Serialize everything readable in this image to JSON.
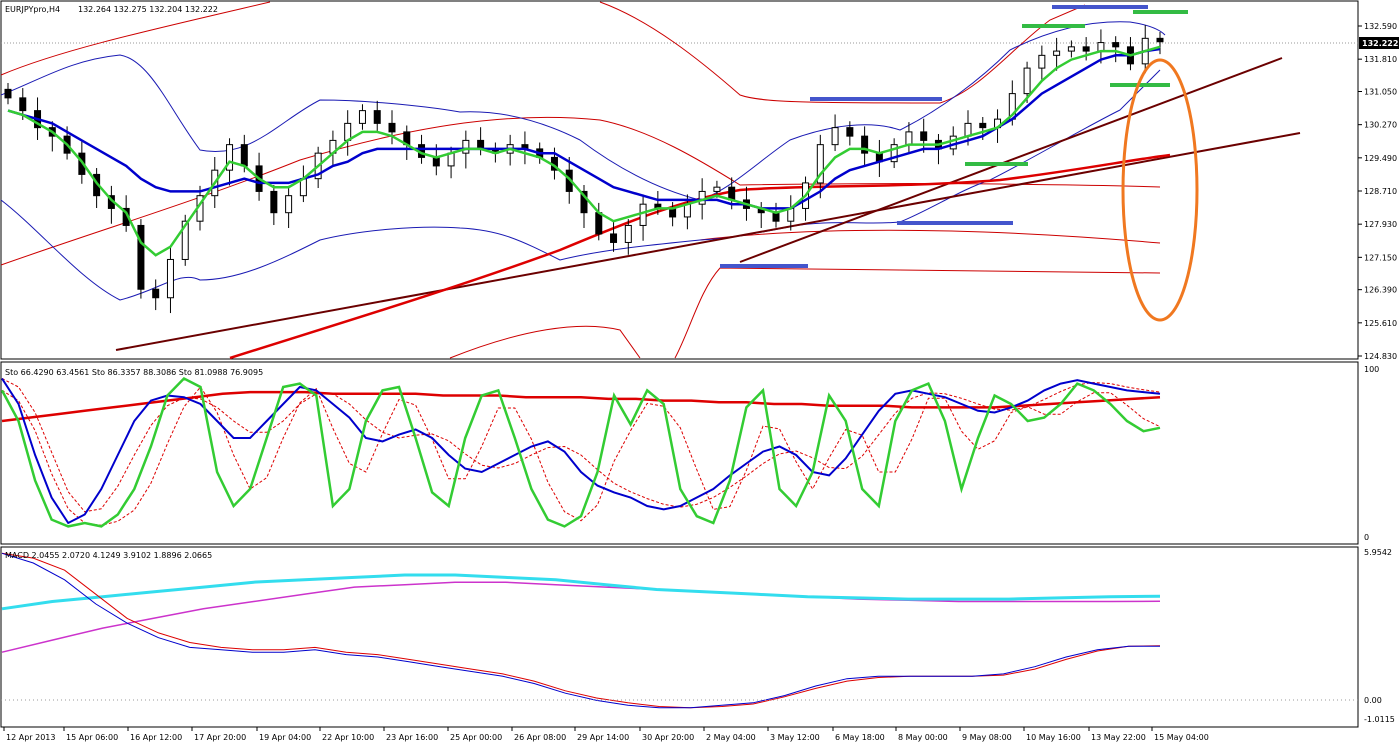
{
  "header": {
    "symbol": "EURJPYpro,H4",
    "quote": "132.264 132.275 132.204 132.222"
  },
  "colors": {
    "background": "#ffffff",
    "grid": "#c8c8c8",
    "bull_candle": "#ffffff",
    "bear_candle": "#000000",
    "ema_fast": "#33cc33",
    "ema_slow": "#0000cc",
    "bollinger_blue": "#1a1ab3",
    "bollinger_red": "#cc0000",
    "trendline_dark": "#6b0000",
    "trendline_red": "#dd0000",
    "support_green": "#33bb44",
    "resistance_blue": "#4455cc",
    "ellipse": "#f07820",
    "stoch_green": "#33cc33",
    "stoch_blue": "#0000cc",
    "stoch_red": "#dd0000",
    "macd_blue": "#0000cc",
    "macd_red": "#dd0000",
    "macd_cyan": "#33ddee",
    "macd_magenta": "#cc33cc"
  },
  "price_axis": {
    "labels": [
      "132.590",
      "131.810",
      "131.050",
      "130.270",
      "129.490",
      "128.710",
      "127.930",
      "127.150",
      "126.390",
      "125.610",
      "124.830"
    ],
    "current": "132.222"
  },
  "stoch_panel": {
    "label": "Sto 66.4290 63.4561  Sto 86.3357 88.3086  Sto 81.0988 76.9095",
    "axis_labels": [
      "100",
      "0"
    ]
  },
  "macd_panel": {
    "label": "MACD 2.0455 2.0720 4.1249 3.9102 1.8896 2.0665",
    "axis_labels": [
      "5.9542",
      "0.00",
      "-1.0115"
    ]
  },
  "time_axis": {
    "labels": [
      "12 Apr 2013",
      "15 Apr 06:00",
      "16 Apr 12:00",
      "17 Apr 20:00",
      "19 Apr 04:00",
      "22 Apr 10:00",
      "23 Apr 16:00",
      "25 Apr 00:00",
      "26 Apr 08:00",
      "29 Apr 14:00",
      "30 Apr 20:00",
      "2 May 04:00",
      "3 May 12:00",
      "6 May 18:00",
      "8 May 00:00",
      "9 May 08:00",
      "10 May 16:00",
      "13 May 22:00",
      "15 May 04:00"
    ]
  },
  "chart_data": {
    "type": "candlestick",
    "symbol": "EURJPYpro",
    "timeframe": "H4",
    "ylim": [
      124.83,
      132.95
    ],
    "closes": [
      130.9,
      130.6,
      130.2,
      130.0,
      129.6,
      129.1,
      128.6,
      128.3,
      127.9,
      126.4,
      126.2,
      127.1,
      128.0,
      128.6,
      129.2,
      129.8,
      129.3,
      128.7,
      128.2,
      128.6,
      129.0,
      129.6,
      129.9,
      130.3,
      130.6,
      130.3,
      130.1,
      129.8,
      129.5,
      129.3,
      129.6,
      129.9,
      129.7,
      129.6,
      129.8,
      129.7,
      129.5,
      129.2,
      128.7,
      128.2,
      127.7,
      127.5,
      127.9,
      128.4,
      128.3,
      128.1,
      128.4,
      128.7,
      128.8,
      128.5,
      128.3,
      128.2,
      128.0,
      128.3,
      128.9,
      129.8,
      130.2,
      130.0,
      129.6,
      129.4,
      129.8,
      130.1,
      129.9,
      129.7,
      130.0,
      130.3,
      130.2,
      130.4,
      131.0,
      131.6,
      131.9,
      132.0,
      132.1,
      132.0,
      132.2,
      132.1,
      131.7,
      132.3,
      132.22
    ],
    "ema_fast": [
      130.6,
      130.5,
      130.3,
      130.1,
      129.8,
      129.4,
      128.9,
      128.5,
      128.2,
      127.5,
      127.2,
      127.4,
      127.9,
      128.4,
      128.9,
      129.4,
      129.3,
      129.0,
      128.8,
      128.8,
      129.0,
      129.3,
      129.6,
      129.9,
      130.1,
      130.1,
      130.0,
      129.8,
      129.6,
      129.5,
      129.6,
      129.7,
      129.7,
      129.6,
      129.7,
      129.6,
      129.5,
      129.3,
      129.0,
      128.6,
      128.2,
      128.0,
      128.1,
      128.2,
      128.3,
      128.3,
      128.4,
      128.5,
      128.6,
      128.5,
      128.4,
      128.3,
      128.2,
      128.3,
      128.6,
      129.1,
      129.5,
      129.7,
      129.7,
      129.6,
      129.7,
      129.8,
      129.8,
      129.8,
      129.9,
      130.0,
      130.1,
      130.2,
      130.5,
      130.9,
      131.3,
      131.6,
      131.8,
      131.9,
      132.0,
      132.0,
      131.9,
      132.0,
      132.1
    ],
    "ema_slow": [
      130.6,
      130.5,
      130.4,
      130.3,
      130.1,
      129.9,
      129.7,
      129.5,
      129.3,
      129.0,
      128.8,
      128.7,
      128.7,
      128.7,
      128.8,
      128.9,
      129.0,
      128.9,
      128.9,
      128.9,
      129.0,
      129.1,
      129.3,
      129.4,
      129.6,
      129.7,
      129.7,
      129.7,
      129.7,
      129.7,
      129.7,
      129.7,
      129.7,
      129.7,
      129.7,
      129.7,
      129.6,
      129.6,
      129.4,
      129.2,
      129.0,
      128.8,
      128.7,
      128.6,
      128.5,
      128.5,
      128.5,
      128.5,
      128.5,
      128.4,
      128.4,
      128.3,
      128.3,
      128.3,
      128.5,
      128.7,
      129.0,
      129.2,
      129.3,
      129.4,
      129.5,
      129.6,
      129.7,
      129.7,
      129.8,
      129.9,
      130.0,
      130.2,
      130.4,
      130.7,
      131.0,
      131.2,
      131.4,
      131.6,
      131.8,
      131.9,
      131.9,
      132.0,
      132.05
    ],
    "stoch_green": [
      88,
      70,
      35,
      12,
      8,
      10,
      8,
      15,
      30,
      55,
      85,
      95,
      90,
      40,
      20,
      30,
      60,
      90,
      92,
      85,
      20,
      30,
      70,
      88,
      90,
      60,
      28,
      20,
      60,
      85,
      88,
      60,
      30,
      12,
      8,
      14,
      40,
      85,
      68,
      88,
      80,
      30,
      14,
      10,
      35,
      78,
      88,
      30,
      20,
      40,
      85,
      70,
      30,
      20,
      70,
      88,
      92,
      70,
      30,
      60,
      85,
      80,
      70,
      72,
      80,
      92,
      88,
      80,
      70,
      64,
      66
    ],
    "stoch_blue": [
      95,
      80,
      50,
      25,
      10,
      15,
      30,
      50,
      70,
      82,
      85,
      84,
      80,
      70,
      60,
      60,
      70,
      80,
      90,
      88,
      80,
      72,
      60,
      58,
      62,
      65,
      60,
      50,
      42,
      40,
      45,
      50,
      55,
      58,
      52,
      40,
      32,
      28,
      25,
      20,
      18,
      20,
      25,
      30,
      38,
      45,
      52,
      55,
      50,
      40,
      38,
      48,
      62,
      76,
      86,
      88,
      86,
      84,
      80,
      76,
      75,
      78,
      82,
      88,
      92,
      94,
      92,
      90,
      88,
      87,
      86
    ],
    "stoch_red_solid": [
      70,
      72,
      74,
      76,
      78,
      80,
      82,
      84,
      86,
      87,
      87,
      87,
      86,
      86,
      86,
      86,
      85,
      85,
      85,
      84,
      84,
      84,
      83,
      83,
      82,
      82,
      81,
      81,
      80,
      80,
      79,
      79,
      79,
      78,
      78,
      78,
      78,
      79,
      80,
      81,
      82,
      83,
      84
    ],
    "macd_blue": [
      5.9,
      5.5,
      4.8,
      3.8,
      3.0,
      2.4,
      2.0,
      1.9,
      1.8,
      1.8,
      1.9,
      1.7,
      1.6,
      1.4,
      1.2,
      1.0,
      0.8,
      0.5,
      0.1,
      -0.2,
      -0.4,
      -0.5,
      -0.5,
      -0.4,
      -0.3,
      0.0,
      0.4,
      0.7,
      0.8,
      0.8,
      0.8,
      0.8,
      0.9,
      1.2,
      1.6,
      1.9,
      2.05,
      2.05
    ],
    "macd_red": [
      5.9,
      5.7,
      5.2,
      4.2,
      3.2,
      2.6,
      2.2,
      2.0,
      1.9,
      1.9,
      2.0,
      1.8,
      1.7,
      1.5,
      1.3,
      1.1,
      0.9,
      0.6,
      0.2,
      -0.1,
      -0.3,
      -0.45,
      -0.5,
      -0.45,
      -0.35,
      -0.05,
      0.3,
      0.6,
      0.75,
      0.8,
      0.8,
      0.8,
      0.85,
      1.1,
      1.5,
      1.85,
      2.05,
      2.07
    ],
    "macd_cyan": [
      3.6,
      3.9,
      4.1,
      4.3,
      4.5,
      4.7,
      4.8,
      4.9,
      5.0,
      5.0,
      4.9,
      4.8,
      4.6,
      4.4,
      4.3,
      4.2,
      4.1,
      4.05,
      4.0,
      4.0,
      4.0,
      4.05,
      4.1,
      4.12
    ],
    "macd_magenta": [
      1.8,
      2.3,
      2.8,
      3.2,
      3.6,
      3.9,
      4.2,
      4.5,
      4.6,
      4.7,
      4.7,
      4.6,
      4.5,
      4.4,
      4.3,
      4.2,
      4.1,
      4.0,
      3.95,
      3.9,
      3.9,
      3.9,
      3.9,
      3.91
    ]
  }
}
